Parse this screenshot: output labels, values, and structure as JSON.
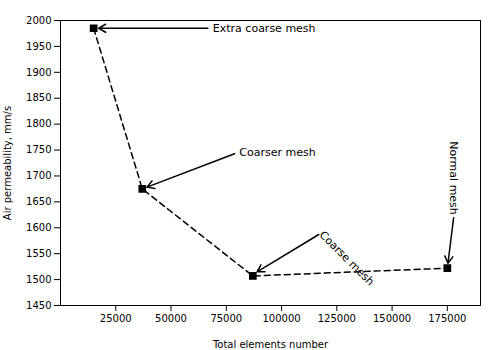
{
  "chart_data": {
    "type": "line",
    "x": [
      15000,
      37000,
      87000,
      175000
    ],
    "values": [
      1985,
      1675,
      1507,
      1522
    ],
    "xlabel": "Total elements number",
    "ylabel": "Air permeability, mm/s",
    "xlim": [
      0,
      190000
    ],
    "ylim": [
      1450,
      2000
    ],
    "xticks": [
      25000,
      50000,
      75000,
      100000,
      125000,
      150000,
      175000
    ],
    "yticks": [
      1450,
      1500,
      1550,
      1600,
      1650,
      1700,
      1750,
      1800,
      1850,
      1900,
      1950,
      2000
    ],
    "color": "#000000",
    "marker": "square",
    "line_style": "dashed",
    "grid": false,
    "annotations": [
      {
        "text": "Extra coarse mesh",
        "xy": [
          15000,
          1985
        ],
        "xytext": [
          68000,
          1985
        ]
      },
      {
        "text": "Coarser mesh",
        "xy": [
          37000,
          1675
        ],
        "xytext": [
          80000,
          1745
        ]
      },
      {
        "text": "Coarse mesh",
        "xy": [
          87000,
          1510
        ],
        "xytext": [
          118000,
          1590
        ]
      },
      {
        "text": "Normal mesh",
        "xy": [
          175000,
          1522
        ],
        "xytext": [
          178000,
          1625
        ]
      }
    ]
  }
}
